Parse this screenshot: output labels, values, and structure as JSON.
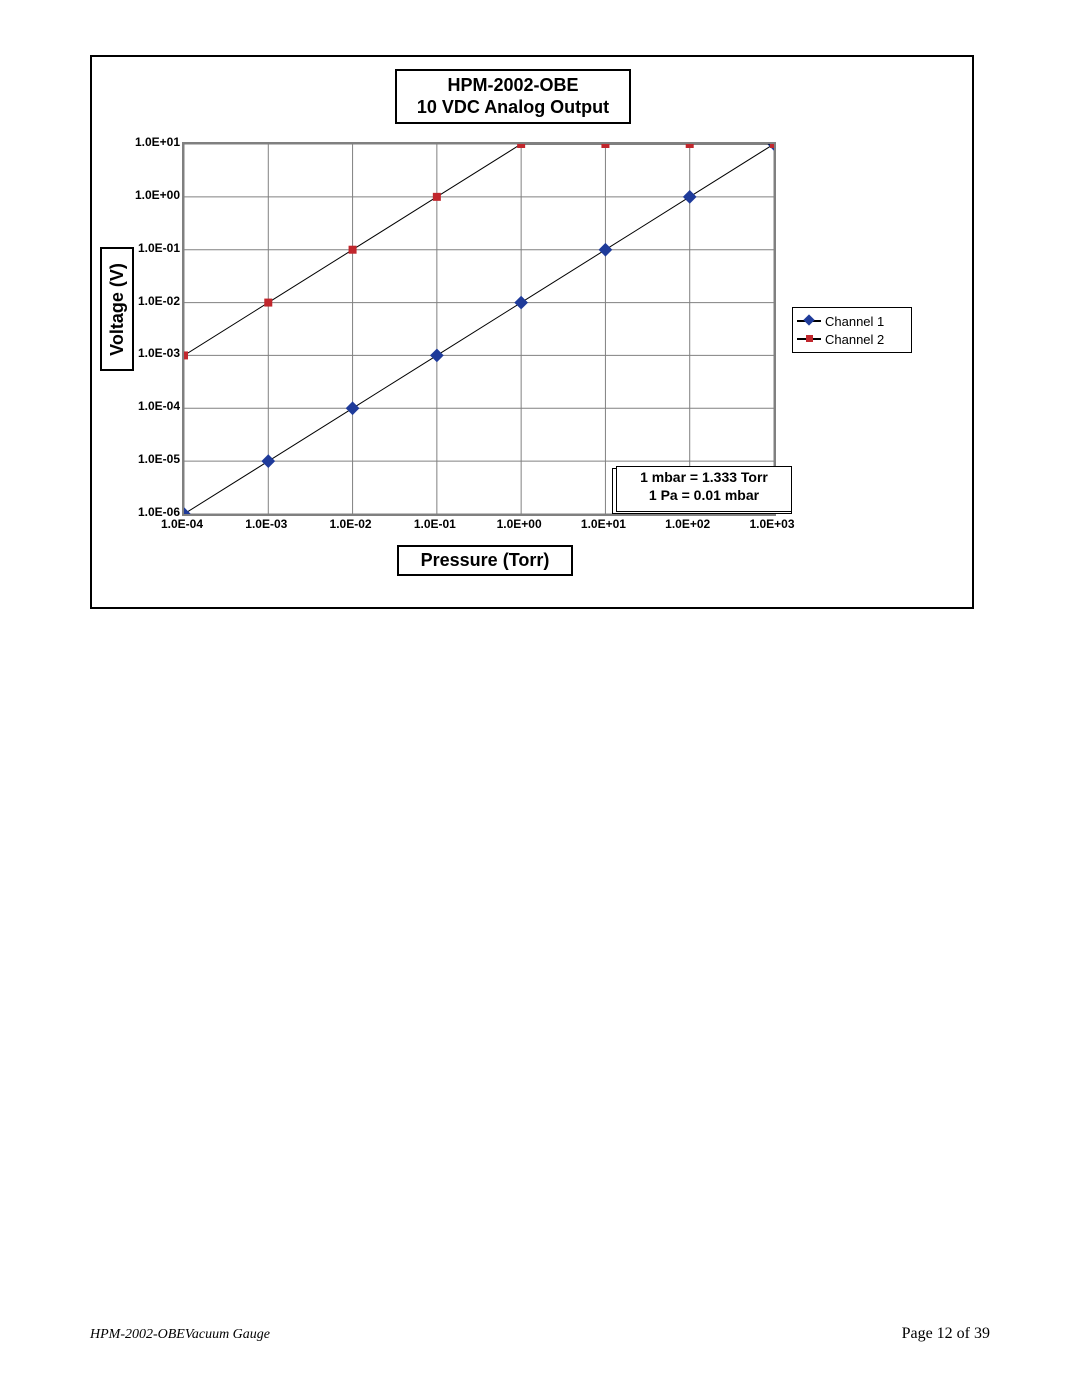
{
  "chart": {
    "type": "line-log-log",
    "title_line1": "HPM-2002-OBE",
    "title_line2": "10 VDC Analog Output",
    "x_axis_title": "Pressure (Torr)",
    "y_axis_title": "Voltage (V)",
    "note_line1": "1 mbar = 1.333 Torr",
    "note_line2": "1 Pa = 0.01 mbar",
    "border_color": "#000000",
    "grid_color": "#808080",
    "background_color": "#ffffff",
    "font_family": "Arial",
    "title_fontsize": 18,
    "axis_title_fontsize": 18,
    "tick_fontsize": 12,
    "note_fontsize": 14,
    "x": {
      "scale": "log",
      "min_exp": -4,
      "max_exp": 3,
      "tick_labels": [
        "1.0E-04",
        "1.0E-03",
        "1.0E-02",
        "1.0E-01",
        "1.0E+00",
        "1.0E+01",
        "1.0E+02",
        "1.0E+03"
      ]
    },
    "y": {
      "scale": "log",
      "min_exp": -6,
      "max_exp": 1,
      "tick_labels": [
        "1.0E-06",
        "1.0E-05",
        "1.0E-04",
        "1.0E-03",
        "1.0E-02",
        "1.0E-01",
        "1.0E+00",
        "1.0E+01"
      ]
    },
    "series": [
      {
        "name": "Channel 1",
        "color": "#1f3b9a",
        "marker": "diamond",
        "marker_size": 8,
        "line_color": "#000000",
        "line_width": 1,
        "x_exp": [
          -4,
          -3,
          -2,
          -1,
          0,
          1,
          2,
          3
        ],
        "y_exp": [
          -6,
          -5,
          -4,
          -3,
          -2,
          -1,
          0,
          1
        ]
      },
      {
        "name": "Channel 2",
        "color": "#c1272d",
        "marker": "square",
        "marker_size": 7,
        "line_color": "#000000",
        "line_width": 1,
        "x_exp": [
          -4,
          -3,
          -2,
          -1,
          0,
          1,
          2,
          3
        ],
        "y_exp": [
          -3,
          -2,
          -1,
          0,
          1,
          1,
          1,
          1
        ]
      }
    ],
    "legend": {
      "position": "right",
      "items": [
        "Channel 1",
        "Channel 2"
      ]
    }
  },
  "footer": {
    "left": "HPM-2002-OBEVacuum Gauge",
    "right": "Page 12 of 39"
  }
}
